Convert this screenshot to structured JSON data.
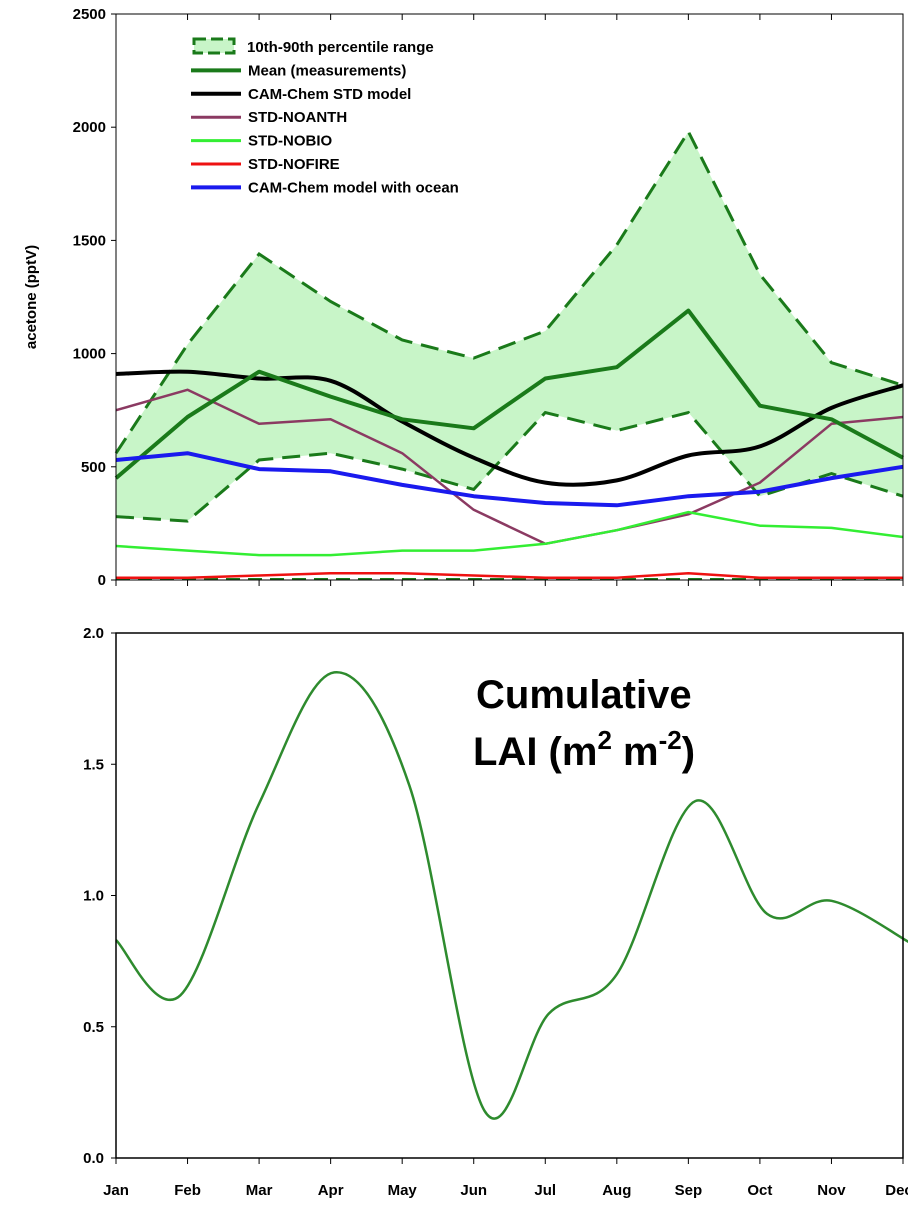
{
  "chart_data": [
    {
      "type": "line",
      "title": "",
      "xlabel": "",
      "ylabel": "acetone (pptV)",
      "ylim": [
        0,
        2500
      ],
      "yticks": [
        "0",
        "500",
        "1000",
        "1500",
        "2000",
        "2500"
      ],
      "x": [
        1,
        2,
        3,
        4,
        5,
        6,
        7,
        8,
        9,
        10,
        11,
        12
      ],
      "band": {
        "name": "10th-90th percentile range",
        "color": "#c8f5c8",
        "edge_color": "#1a7a1a",
        "upper": [
          560,
          1040,
          1440,
          1230,
          1060,
          980,
          1100,
          1480,
          1980,
          1350,
          960,
          860
        ],
        "lower": [
          280,
          260,
          530,
          560,
          490,
          400,
          740,
          660,
          740,
          370,
          470,
          370
        ]
      },
      "series": [
        {
          "name": "Mean (measurements)",
          "color": "#1a7a1a",
          "width": 4,
          "values": [
            450,
            720,
            920,
            810,
            710,
            670,
            890,
            940,
            1190,
            770,
            710,
            540
          ]
        },
        {
          "name": "CAM-Chem STD model",
          "color": "#000000",
          "width": 4,
          "smooth": true,
          "values": [
            910,
            920,
            890,
            880,
            700,
            540,
            430,
            440,
            550,
            590,
            760,
            860
          ]
        },
        {
          "name": "STD-NOANTH",
          "color": "#8b3a62",
          "width": 2.5,
          "values": [
            750,
            840,
            690,
            710,
            560,
            310,
            160,
            220,
            290,
            430,
            690,
            720
          ]
        },
        {
          "name": "STD-NOBIO",
          "color": "#33ee33",
          "width": 2.5,
          "values": [
            150,
            130,
            110,
            110,
            130,
            130,
            160,
            220,
            300,
            240,
            230,
            190
          ]
        },
        {
          "name": "STD-NOFIRE",
          "color": "#ee1111",
          "width": 2.5,
          "values": [
            10,
            10,
            20,
            30,
            30,
            20,
            10,
            10,
            30,
            10,
            10,
            10
          ]
        },
        {
          "name": "CAM-Chem model with ocean",
          "color": "#1a1aee",
          "width": 4,
          "values": [
            530,
            560,
            490,
            480,
            420,
            370,
            340,
            330,
            370,
            390,
            450,
            500
          ]
        }
      ],
      "legend_position": "top-left"
    },
    {
      "type": "line",
      "title": "",
      "xlabel": "",
      "ylabel": "",
      "ylim": [
        0,
        2
      ],
      "yticks": [
        "0.0",
        "0.5",
        "1.0",
        "1.5",
        "2.0"
      ],
      "categories": [
        "Jan",
        "Feb",
        "Mar",
        "Apr",
        "May",
        "Jun",
        "Jul",
        "Aug",
        "Sep",
        "Oct",
        "Nov",
        "Dec"
      ],
      "annotation": {
        "line1": "Cumulative",
        "line2_prefix": "LAI (m",
        "sup1": "2",
        "mid": " m",
        "sup2": "-2",
        "suffix": ")"
      },
      "series": [
        {
          "color": "#2e8b2e",
          "width": 2.5,
          "smooth": true,
          "x": [
            1,
            1.9,
            3,
            4.05,
            5.1,
            6.15,
            7.05,
            8,
            9.1,
            10.1,
            11,
            12.1
          ],
          "values": [
            0.83,
            0.62,
            1.35,
            1.85,
            1.42,
            0.18,
            0.55,
            0.7,
            1.36,
            0.93,
            0.98,
            0.82
          ]
        }
      ]
    }
  ]
}
